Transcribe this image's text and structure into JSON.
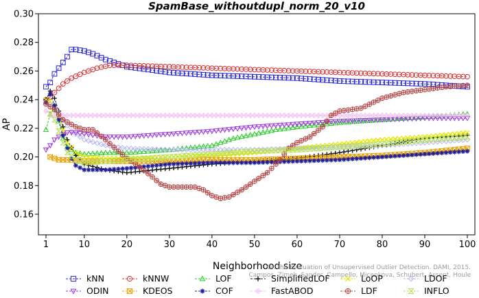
{
  "colors": {
    "kNN": "#2323d6",
    "kNNW": "#d92a2a",
    "LOF": "#22cc22",
    "SimplifiedLOF": "#111111",
    "LoOP": "#e6e600",
    "LDOF": "#b3b3f0",
    "ODIN": "#9a33e0",
    "KDEOS": "#e8a000",
    "COF": "#1c1c9c",
    "FastABOD": "#f2c2f2",
    "LDF": "#b34444",
    "INFLO": "#b9e05a"
  },
  "chart_data": {
    "type": "line",
    "title": "SpamBase_withoutdupl_norm_20_v10",
    "xlabel": "Neighborhood size",
    "ylabel": "AP",
    "xlim": [
      1,
      100
    ],
    "ylim": [
      0.15,
      0.3
    ],
    "xticks": [
      1,
      10,
      20,
      30,
      40,
      50,
      60,
      70,
      80,
      90,
      100
    ],
    "yticks": [
      "0.16",
      "0.18",
      "0.20",
      "0.22",
      "0.24",
      "0.26",
      "0.28",
      "0.30"
    ],
    "grid": false,
    "legend_position": "bottom",
    "series": [
      {
        "name": "kNN",
        "marker": "square",
        "points": [
          [
            1,
            0.249
          ],
          [
            2,
            0.252
          ],
          [
            3,
            0.258
          ],
          [
            4,
            0.262
          ],
          [
            5,
            0.266
          ],
          [
            6,
            0.27
          ],
          [
            7,
            0.275
          ],
          [
            8,
            0.275
          ],
          [
            10,
            0.274
          ],
          [
            12,
            0.272
          ],
          [
            15,
            0.268
          ],
          [
            20,
            0.263
          ],
          [
            25,
            0.261
          ],
          [
            30,
            0.259
          ],
          [
            40,
            0.257
          ],
          [
            50,
            0.256
          ],
          [
            60,
            0.255
          ],
          [
            70,
            0.253
          ],
          [
            80,
            0.252
          ],
          [
            90,
            0.251
          ],
          [
            100,
            0.249
          ]
        ]
      },
      {
        "name": "kNNW",
        "marker": "circle",
        "points": [
          [
            1,
            0.24
          ],
          [
            2,
            0.242
          ],
          [
            3,
            0.245
          ],
          [
            4,
            0.248
          ],
          [
            5,
            0.251
          ],
          [
            7,
            0.255
          ],
          [
            10,
            0.259
          ],
          [
            13,
            0.262
          ],
          [
            16,
            0.264
          ],
          [
            20,
            0.264
          ],
          [
            30,
            0.263
          ],
          [
            40,
            0.262
          ],
          [
            50,
            0.261
          ],
          [
            60,
            0.26
          ],
          [
            70,
            0.259
          ],
          [
            80,
            0.258
          ],
          [
            90,
            0.257
          ],
          [
            100,
            0.256
          ]
        ]
      },
      {
        "name": "LOF",
        "marker": "triangle-up",
        "points": [
          [
            1,
            0.219
          ],
          [
            2,
            0.23
          ],
          [
            3,
            0.233
          ],
          [
            4,
            0.225
          ],
          [
            5,
            0.213
          ],
          [
            6,
            0.207
          ],
          [
            8,
            0.203
          ],
          [
            10,
            0.202
          ],
          [
            15,
            0.203
          ],
          [
            20,
            0.203
          ],
          [
            30,
            0.205
          ],
          [
            40,
            0.208
          ],
          [
            45,
            0.213
          ],
          [
            50,
            0.216
          ],
          [
            55,
            0.219
          ],
          [
            60,
            0.221
          ],
          [
            70,
            0.224
          ],
          [
            80,
            0.226
          ],
          [
            90,
            0.228
          ],
          [
            100,
            0.23
          ]
        ]
      },
      {
        "name": "SimplifiedLOF",
        "marker": "plus",
        "points": [
          [
            1,
            0.24
          ],
          [
            2,
            0.246
          ],
          [
            3,
            0.241
          ],
          [
            4,
            0.232
          ],
          [
            5,
            0.221
          ],
          [
            6,
            0.212
          ],
          [
            8,
            0.201
          ],
          [
            10,
            0.195
          ],
          [
            15,
            0.191
          ],
          [
            20,
            0.189
          ],
          [
            30,
            0.192
          ],
          [
            40,
            0.195
          ],
          [
            50,
            0.197
          ],
          [
            60,
            0.199
          ],
          [
            70,
            0.203
          ],
          [
            80,
            0.208
          ],
          [
            90,
            0.213
          ],
          [
            100,
            0.215
          ]
        ]
      },
      {
        "name": "LoOP",
        "marker": "x",
        "points": [
          [
            1,
            0.24
          ],
          [
            2,
            0.239
          ],
          [
            3,
            0.236
          ],
          [
            4,
            0.229
          ],
          [
            5,
            0.219
          ],
          [
            6,
            0.21
          ],
          [
            8,
            0.203
          ],
          [
            10,
            0.2
          ],
          [
            15,
            0.199
          ],
          [
            20,
            0.199
          ],
          [
            30,
            0.2
          ],
          [
            40,
            0.201
          ],
          [
            50,
            0.203
          ],
          [
            60,
            0.206
          ],
          [
            70,
            0.209
          ],
          [
            80,
            0.212
          ],
          [
            90,
            0.214
          ],
          [
            100,
            0.217
          ]
        ]
      },
      {
        "name": "LDOF",
        "marker": "diamond",
        "points": [
          [
            1,
            0.238
          ],
          [
            3,
            0.235
          ],
          [
            5,
            0.226
          ],
          [
            7,
            0.218
          ],
          [
            10,
            0.212
          ],
          [
            15,
            0.208
          ],
          [
            20,
            0.206
          ],
          [
            30,
            0.205
          ],
          [
            40,
            0.205
          ],
          [
            50,
            0.205
          ],
          [
            60,
            0.206
          ],
          [
            70,
            0.207
          ],
          [
            80,
            0.208
          ],
          [
            90,
            0.21
          ],
          [
            100,
            0.212
          ]
        ]
      },
      {
        "name": "ODIN",
        "marker": "triangle-down",
        "points": [
          [
            1,
            0.205
          ],
          [
            2,
            0.208
          ],
          [
            3,
            0.212
          ],
          [
            4,
            0.214
          ],
          [
            6,
            0.217
          ],
          [
            8,
            0.217
          ],
          [
            10,
            0.216
          ],
          [
            15,
            0.214
          ],
          [
            20,
            0.214
          ],
          [
            30,
            0.216
          ],
          [
            40,
            0.218
          ],
          [
            50,
            0.221
          ],
          [
            60,
            0.223
          ],
          [
            70,
            0.225
          ],
          [
            80,
            0.226
          ],
          [
            90,
            0.227
          ],
          [
            100,
            0.227
          ]
        ]
      },
      {
        "name": "KDEOS",
        "marker": "square-x",
        "points": [
          [
            2,
            0.2
          ],
          [
            3,
            0.199
          ],
          [
            4,
            0.198
          ],
          [
            6,
            0.198
          ],
          [
            10,
            0.197
          ],
          [
            20,
            0.197
          ],
          [
            30,
            0.197
          ],
          [
            40,
            0.198
          ],
          [
            50,
            0.198
          ],
          [
            60,
            0.199
          ],
          [
            70,
            0.2
          ],
          [
            80,
            0.201
          ],
          [
            90,
            0.203
          ],
          [
            100,
            0.206
          ]
        ]
      },
      {
        "name": "COF",
        "marker": "asterisk",
        "points": [
          [
            1,
            0.238
          ],
          [
            2,
            0.244
          ],
          [
            3,
            0.236
          ],
          [
            4,
            0.226
          ],
          [
            5,
            0.215
          ],
          [
            6,
            0.206
          ],
          [
            7,
            0.199
          ],
          [
            8,
            0.194
          ],
          [
            10,
            0.191
          ],
          [
            15,
            0.191
          ],
          [
            20,
            0.192
          ],
          [
            30,
            0.195
          ],
          [
            40,
            0.196
          ],
          [
            50,
            0.196
          ],
          [
            60,
            0.197
          ],
          [
            70,
            0.198
          ],
          [
            80,
            0.2
          ],
          [
            90,
            0.202
          ],
          [
            100,
            0.204
          ]
        ]
      },
      {
        "name": "FastABOD",
        "marker": "diamond-plus",
        "points": [
          [
            1,
            0.232
          ],
          [
            2,
            0.229
          ],
          [
            5,
            0.229
          ],
          [
            10,
            0.229
          ],
          [
            20,
            0.229
          ],
          [
            30,
            0.229
          ],
          [
            40,
            0.229
          ],
          [
            50,
            0.229
          ],
          [
            60,
            0.229
          ],
          [
            70,
            0.229
          ],
          [
            80,
            0.229
          ],
          [
            90,
            0.229
          ],
          [
            100,
            0.229
          ]
        ]
      },
      {
        "name": "LDF",
        "marker": "circle-plus",
        "points": [
          [
            1,
            0.237
          ],
          [
            3,
            0.233
          ],
          [
            5,
            0.226
          ],
          [
            8,
            0.221
          ],
          [
            10,
            0.219
          ],
          [
            12,
            0.219
          ],
          [
            15,
            0.212
          ],
          [
            18,
            0.204
          ],
          [
            20,
            0.199
          ],
          [
            23,
            0.193
          ],
          [
            26,
            0.186
          ],
          [
            28,
            0.181
          ],
          [
            30,
            0.179
          ],
          [
            33,
            0.179
          ],
          [
            36,
            0.179
          ],
          [
            38,
            0.177
          ],
          [
            40,
            0.173
          ],
          [
            42,
            0.171
          ],
          [
            44,
            0.172
          ],
          [
            47,
            0.177
          ],
          [
            50,
            0.183
          ],
          [
            53,
            0.189
          ],
          [
            56,
            0.198
          ],
          [
            58,
            0.206
          ],
          [
            60,
            0.21
          ],
          [
            63,
            0.214
          ],
          [
            66,
            0.221
          ],
          [
            68,
            0.229
          ],
          [
            70,
            0.232
          ],
          [
            75,
            0.234
          ],
          [
            80,
            0.241
          ],
          [
            85,
            0.245
          ],
          [
            90,
            0.247
          ],
          [
            95,
            0.249
          ],
          [
            100,
            0.25
          ]
        ]
      },
      {
        "name": "INFLO",
        "marker": "hourglass",
        "points": [
          [
            2,
            0.23
          ],
          [
            3,
            0.226
          ],
          [
            4,
            0.218
          ],
          [
            5,
            0.21
          ],
          [
            6,
            0.203
          ],
          [
            8,
            0.198
          ],
          [
            10,
            0.196
          ],
          [
            15,
            0.197
          ],
          [
            20,
            0.198
          ],
          [
            30,
            0.2
          ],
          [
            40,
            0.202
          ],
          [
            50,
            0.204
          ],
          [
            60,
            0.205
          ],
          [
            70,
            0.207
          ],
          [
            80,
            0.209
          ],
          [
            90,
            0.212
          ],
          [
            100,
            0.214
          ]
        ]
      }
    ],
    "legend_rows": [
      [
        "kNN",
        "kNNW",
        "LOF",
        "SimplifiedLOF",
        "LoOP",
        "LDOF"
      ],
      [
        "ODIN",
        "KDEOS",
        "COF",
        "FastABOD",
        "LDF",
        "INFLO"
      ]
    ],
    "watermark_lines": [
      "On the Evaluation of Unsupervised Outlier Detection. DAMI, 2015.",
      "Campos, Zimek, Sander, Campello, Micenkova, Schubert, Assent, Houle"
    ]
  }
}
